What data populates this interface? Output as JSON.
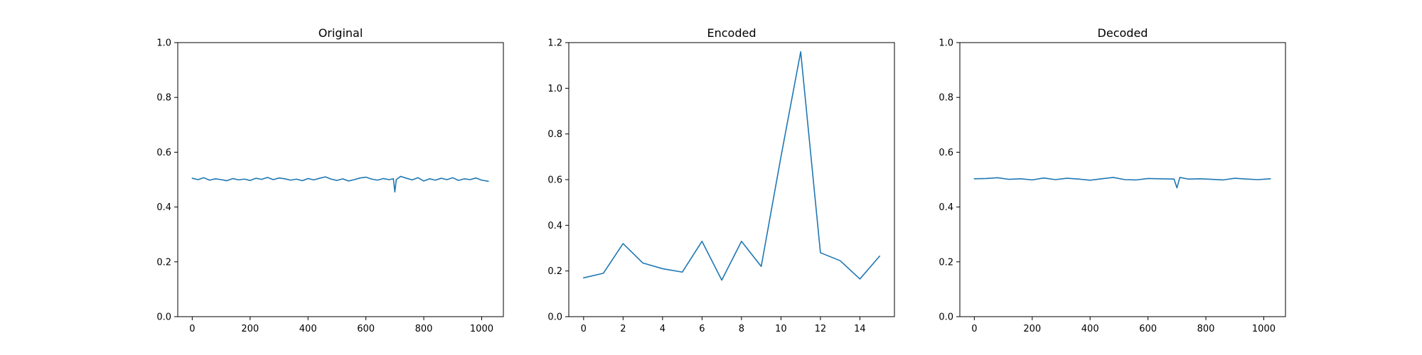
{
  "chart_data": [
    {
      "type": "line",
      "title": "Original",
      "xlim": [
        -50,
        1075
      ],
      "ylim": [
        0.0,
        1.0
      ],
      "xticks": [
        0,
        200,
        400,
        600,
        800,
        1000
      ],
      "yticks": [
        0.0,
        0.2,
        0.4,
        0.6,
        0.8,
        1.0
      ],
      "xtick_labels": [
        "0",
        "200",
        "400",
        "600",
        "800",
        "1000"
      ],
      "ytick_labels": [
        "0.0",
        "0.2",
        "0.4",
        "0.6",
        "0.8",
        "1.0"
      ],
      "grid": false,
      "series": [
        {
          "color": "#1f77b4",
          "x": [
            0,
            20,
            40,
            60,
            80,
            100,
            120,
            140,
            160,
            180,
            200,
            220,
            240,
            260,
            280,
            300,
            320,
            340,
            360,
            380,
            400,
            420,
            440,
            460,
            480,
            500,
            520,
            540,
            560,
            580,
            600,
            620,
            640,
            660,
            680,
            695,
            700,
            705,
            720,
            740,
            760,
            780,
            800,
            820,
            840,
            860,
            880,
            900,
            920,
            940,
            960,
            980,
            1000,
            1023
          ],
          "y": [
            0.505,
            0.5,
            0.507,
            0.498,
            0.503,
            0.5,
            0.496,
            0.504,
            0.499,
            0.502,
            0.497,
            0.505,
            0.501,
            0.508,
            0.5,
            0.506,
            0.503,
            0.498,
            0.502,
            0.496,
            0.504,
            0.499,
            0.505,
            0.51,
            0.502,
            0.497,
            0.503,
            0.495,
            0.5,
            0.506,
            0.509,
            0.502,
            0.498,
            0.504,
            0.5,
            0.503,
            0.455,
            0.5,
            0.512,
            0.505,
            0.499,
            0.507,
            0.495,
            0.503,
            0.498,
            0.505,
            0.5,
            0.507,
            0.497,
            0.503,
            0.5,
            0.506,
            0.498,
            0.494
          ]
        }
      ]
    },
    {
      "type": "line",
      "title": "Encoded",
      "xlim": [
        -0.75,
        15.75
      ],
      "ylim": [
        0.0,
        1.2
      ],
      "xticks": [
        0,
        2,
        4,
        6,
        8,
        10,
        12,
        14
      ],
      "yticks": [
        0.0,
        0.2,
        0.4,
        0.6,
        0.8,
        1.0,
        1.2
      ],
      "xtick_labels": [
        "0",
        "2",
        "4",
        "6",
        "8",
        "10",
        "12",
        "14"
      ],
      "ytick_labels": [
        "0.0",
        "0.2",
        "0.4",
        "0.6",
        "0.8",
        "1.0",
        "1.2"
      ],
      "grid": false,
      "series": [
        {
          "color": "#1f77b4",
          "x": [
            0,
            1,
            2,
            3,
            4,
            5,
            6,
            7,
            8,
            9,
            10,
            11,
            12,
            13,
            14,
            15
          ],
          "y": [
            0.17,
            0.19,
            0.32,
            0.235,
            0.21,
            0.195,
            0.33,
            0.16,
            0.33,
            0.22,
            0.7,
            1.16,
            0.28,
            0.245,
            0.165,
            0.265
          ]
        }
      ]
    },
    {
      "type": "line",
      "title": "Decoded",
      "xlim": [
        -50,
        1075
      ],
      "ylim": [
        0.0,
        1.0
      ],
      "xticks": [
        0,
        200,
        400,
        600,
        800,
        1000
      ],
      "yticks": [
        0.0,
        0.2,
        0.4,
        0.6,
        0.8,
        1.0
      ],
      "xtick_labels": [
        "0",
        "200",
        "400",
        "600",
        "800",
        "1000"
      ],
      "ytick_labels": [
        "0.0",
        "0.2",
        "0.4",
        "0.6",
        "0.8",
        "1.0"
      ],
      "grid": false,
      "series": [
        {
          "color": "#1f77b4",
          "x": [
            0,
            40,
            80,
            120,
            160,
            200,
            240,
            280,
            320,
            360,
            400,
            440,
            480,
            520,
            560,
            600,
            640,
            690,
            700,
            710,
            740,
            780,
            820,
            860,
            900,
            940,
            980,
            1023
          ],
          "y": [
            0.503,
            0.504,
            0.507,
            0.501,
            0.503,
            0.499,
            0.506,
            0.5,
            0.505,
            0.502,
            0.498,
            0.503,
            0.508,
            0.5,
            0.499,
            0.504,
            0.503,
            0.502,
            0.47,
            0.508,
            0.502,
            0.503,
            0.501,
            0.499,
            0.505,
            0.502,
            0.5,
            0.503
          ]
        }
      ]
    }
  ]
}
